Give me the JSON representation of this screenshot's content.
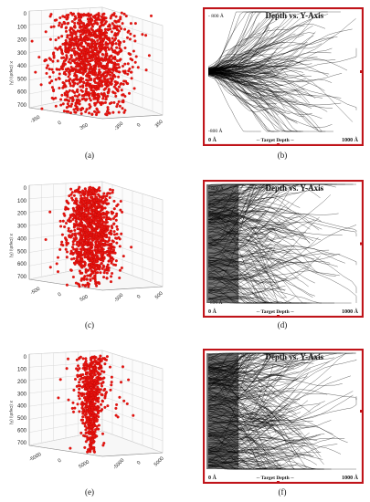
{
  "figure": {
    "panels": [
      {
        "id": "a",
        "caption": "(a)",
        "type": "scatter3d",
        "ticks": [
          "0",
          "100",
          "200",
          "300",
          "400",
          "500",
          "600",
          "700"
        ],
        "axis_label": "X (Depth) (Å)",
        "floor_left": [
          "-350",
          "0",
          "350"
        ],
        "floor_right": [
          "-350",
          "0",
          "350"
        ],
        "cloud": "wide"
      },
      {
        "id": "b",
        "caption": "(b)",
        "type": "trajectory",
        "title": "Depth vs. Y-Axis",
        "top_label": "- 800 Å",
        "bottom_label": "-800 Å",
        "x_left": "0 Å",
        "x_mid": "-- Target Depth --",
        "x_right": "1000 Å",
        "spread": "narrow"
      },
      {
        "id": "c",
        "caption": "(c)",
        "type": "scatter3d",
        "ticks": [
          "0",
          "100",
          "200",
          "300",
          "400",
          "500",
          "600",
          "700"
        ],
        "axis_label": "X (Depth) (Å)",
        "floor_left": [
          "-500",
          "0",
          "500"
        ],
        "floor_right": [
          "-500",
          "0",
          "500"
        ],
        "cloud": "medium"
      },
      {
        "id": "d",
        "caption": "(d)",
        "type": "trajectory",
        "title": "Depth vs. Y-Axis",
        "top_label": "- 800 Å",
        "bottom_label": "-800 Å",
        "x_left": "0 Å",
        "x_mid": "-- Target Depth --",
        "x_right": "1000 Å",
        "spread": "wide"
      },
      {
        "id": "e",
        "caption": "(e)",
        "type": "scatter3d",
        "ticks": [
          "0",
          "100",
          "200",
          "300",
          "400",
          "500",
          "600",
          "700"
        ],
        "axis_label": "X (Depth) (Å)",
        "floor_left": [
          "-5000",
          "0",
          "5000"
        ],
        "floor_right": [
          "-5000",
          "0",
          "5000"
        ],
        "cloud": "thin"
      },
      {
        "id": "f",
        "caption": "(f)",
        "type": "trajectory",
        "title": "Depth vs. Y-Axis",
        "top_label": "",
        "bottom_label": "",
        "x_left": "0 Å",
        "x_mid": "-- Target Depth --",
        "x_right": "1000 Å",
        "spread": "full"
      }
    ],
    "colors": {
      "points": "#e8140f",
      "tracks": "#000000",
      "frame": "#c0141a",
      "grid": "#cfcfcf"
    }
  }
}
